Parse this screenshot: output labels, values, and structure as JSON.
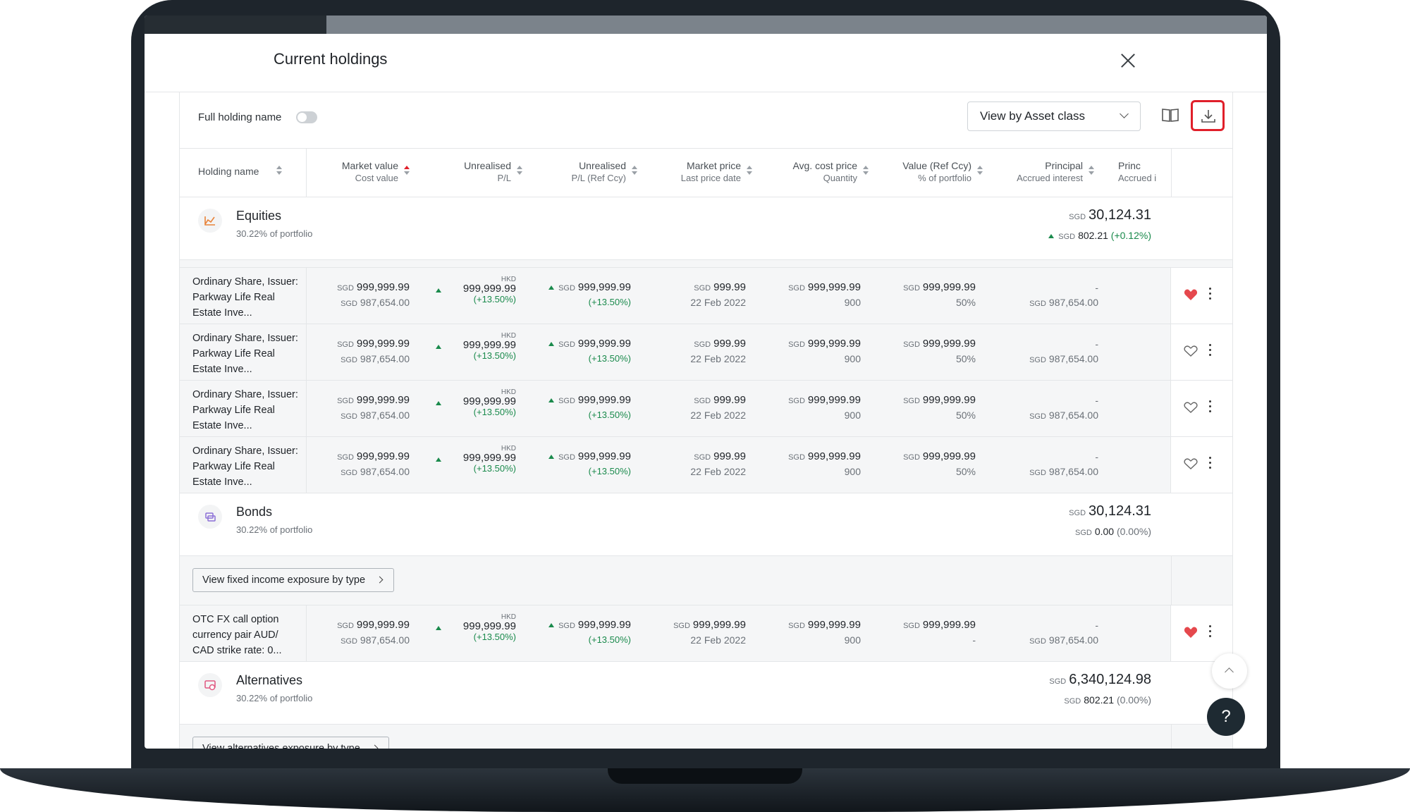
{
  "modal": {
    "title": "Current holdings"
  },
  "toolbar": {
    "toggle_label": "Full holding name",
    "view_select": "View by Asset class"
  },
  "columns": [
    {
      "label": "Holding name",
      "sub": ""
    },
    {
      "label": "Market value",
      "sub": "Cost value"
    },
    {
      "label": "Unrealised",
      "sub": "P/L"
    },
    {
      "label": "Unrealised",
      "sub": "P/L (Ref Ccy)"
    },
    {
      "label": "Market price",
      "sub": "Last price date"
    },
    {
      "label": "Avg. cost price",
      "sub": "Quantity"
    },
    {
      "label": "Value (Ref Ccy)",
      "sub": "% of portfolio"
    },
    {
      "label": "Principal",
      "sub": "Accrued interest"
    },
    {
      "label": "Princ",
      "sub": "Accrued int"
    }
  ],
  "groups": {
    "equities": {
      "name": "Equities",
      "sub": "30.22% of portfolio",
      "ccy": "SGD",
      "total": "30,124.31",
      "change": "802.21",
      "pct": "(+0.12%)"
    },
    "bonds": {
      "name": "Bonds",
      "sub": "30.22% of portfolio",
      "ccy": "SGD",
      "total": "30,124.31",
      "change": "0.00",
      "pct": "(0.00%)",
      "button": "View fixed income exposure by type"
    },
    "alternatives": {
      "name": "Alternatives",
      "sub": "30.22% of portfolio",
      "ccy": "SGD",
      "total": "6,340,124.98",
      "change": "802.21",
      "pct": "(0.00%)",
      "button": "View alternatives exposure by type"
    }
  },
  "rows": [
    {
      "name": "Ordinary Share, Issuer: Parkway Life Real Estate Inve...",
      "ccy": "SGD",
      "mv": "999,999.99",
      "cost": "987,654.00",
      "pl_ccy": "HKD",
      "pl": "999,999.99",
      "pl_pct": "(+13.50%)",
      "plref": "999,999.99",
      "plref_pct": "(+13.50%)",
      "price": "999.99",
      "date": "22 Feb 2022",
      "avg": "999,999.99",
      "qty": "900",
      "value": "999,999.99",
      "port": "50%",
      "principal": "-",
      "accrued": "987,654.00",
      "favorite": true
    },
    {
      "name": "Ordinary Share, Issuer: Parkway Life Real Estate Inve...",
      "ccy": "SGD",
      "mv": "999,999.99",
      "cost": "987,654.00",
      "pl_ccy": "HKD",
      "pl": "999,999.99",
      "pl_pct": "(+13.50%)",
      "plref": "999,999.99",
      "plref_pct": "(+13.50%)",
      "price": "999.99",
      "date": "22 Feb 2022",
      "avg": "999,999.99",
      "qty": "900",
      "value": "999,999.99",
      "port": "50%",
      "principal": "-",
      "accrued": "987,654.00",
      "favorite": false
    },
    {
      "name": "Ordinary Share, Issuer: Parkway Life Real Estate Inve...",
      "ccy": "SGD",
      "mv": "999,999.99",
      "cost": "987,654.00",
      "pl_ccy": "HKD",
      "pl": "999,999.99",
      "pl_pct": "(+13.50%)",
      "plref": "999,999.99",
      "plref_pct": "(+13.50%)",
      "price": "999.99",
      "date": "22 Feb 2022",
      "avg": "999,999.99",
      "qty": "900",
      "value": "999,999.99",
      "port": "50%",
      "principal": "-",
      "accrued": "987,654.00",
      "favorite": false
    },
    {
      "name": "Ordinary Share, Issuer: Parkway Life Real Estate Inve...",
      "ccy": "SGD",
      "mv": "999,999.99",
      "cost": "987,654.00",
      "pl_ccy": "HKD",
      "pl": "999,999.99",
      "pl_pct": "(+13.50%)",
      "plref": "999,999.99",
      "plref_pct": "(+13.50%)",
      "price": "999.99",
      "date": "22 Feb 2022",
      "avg": "999,999.99",
      "qty": "900",
      "value": "999,999.99",
      "port": "50%",
      "principal": "-",
      "accrued": "987,654.00",
      "favorite": false
    },
    {
      "name": "OTC FX call option currency pair AUD/ CAD strike rate: 0...",
      "ccy": "SGD",
      "mv": "999,999.99",
      "cost": "987,654.00",
      "pl_ccy": "HKD",
      "pl": "999,999.99",
      "pl_pct": "(+13.50%)",
      "plref": "999,999.99",
      "plref_pct": "(+13.50%)",
      "price": "999,999.99",
      "date": "22 Feb 2022",
      "avg": "999,999.99",
      "qty": "900",
      "value": "999,999.99",
      "port": "-",
      "principal": "-",
      "accrued": "987,654.00",
      "favorite": true
    }
  ],
  "help": {
    "label": "?"
  },
  "colors": {
    "accent_red": "#e01f2a",
    "positive_green": "#1a8a4c",
    "dark_navy": "#1e2a32"
  }
}
